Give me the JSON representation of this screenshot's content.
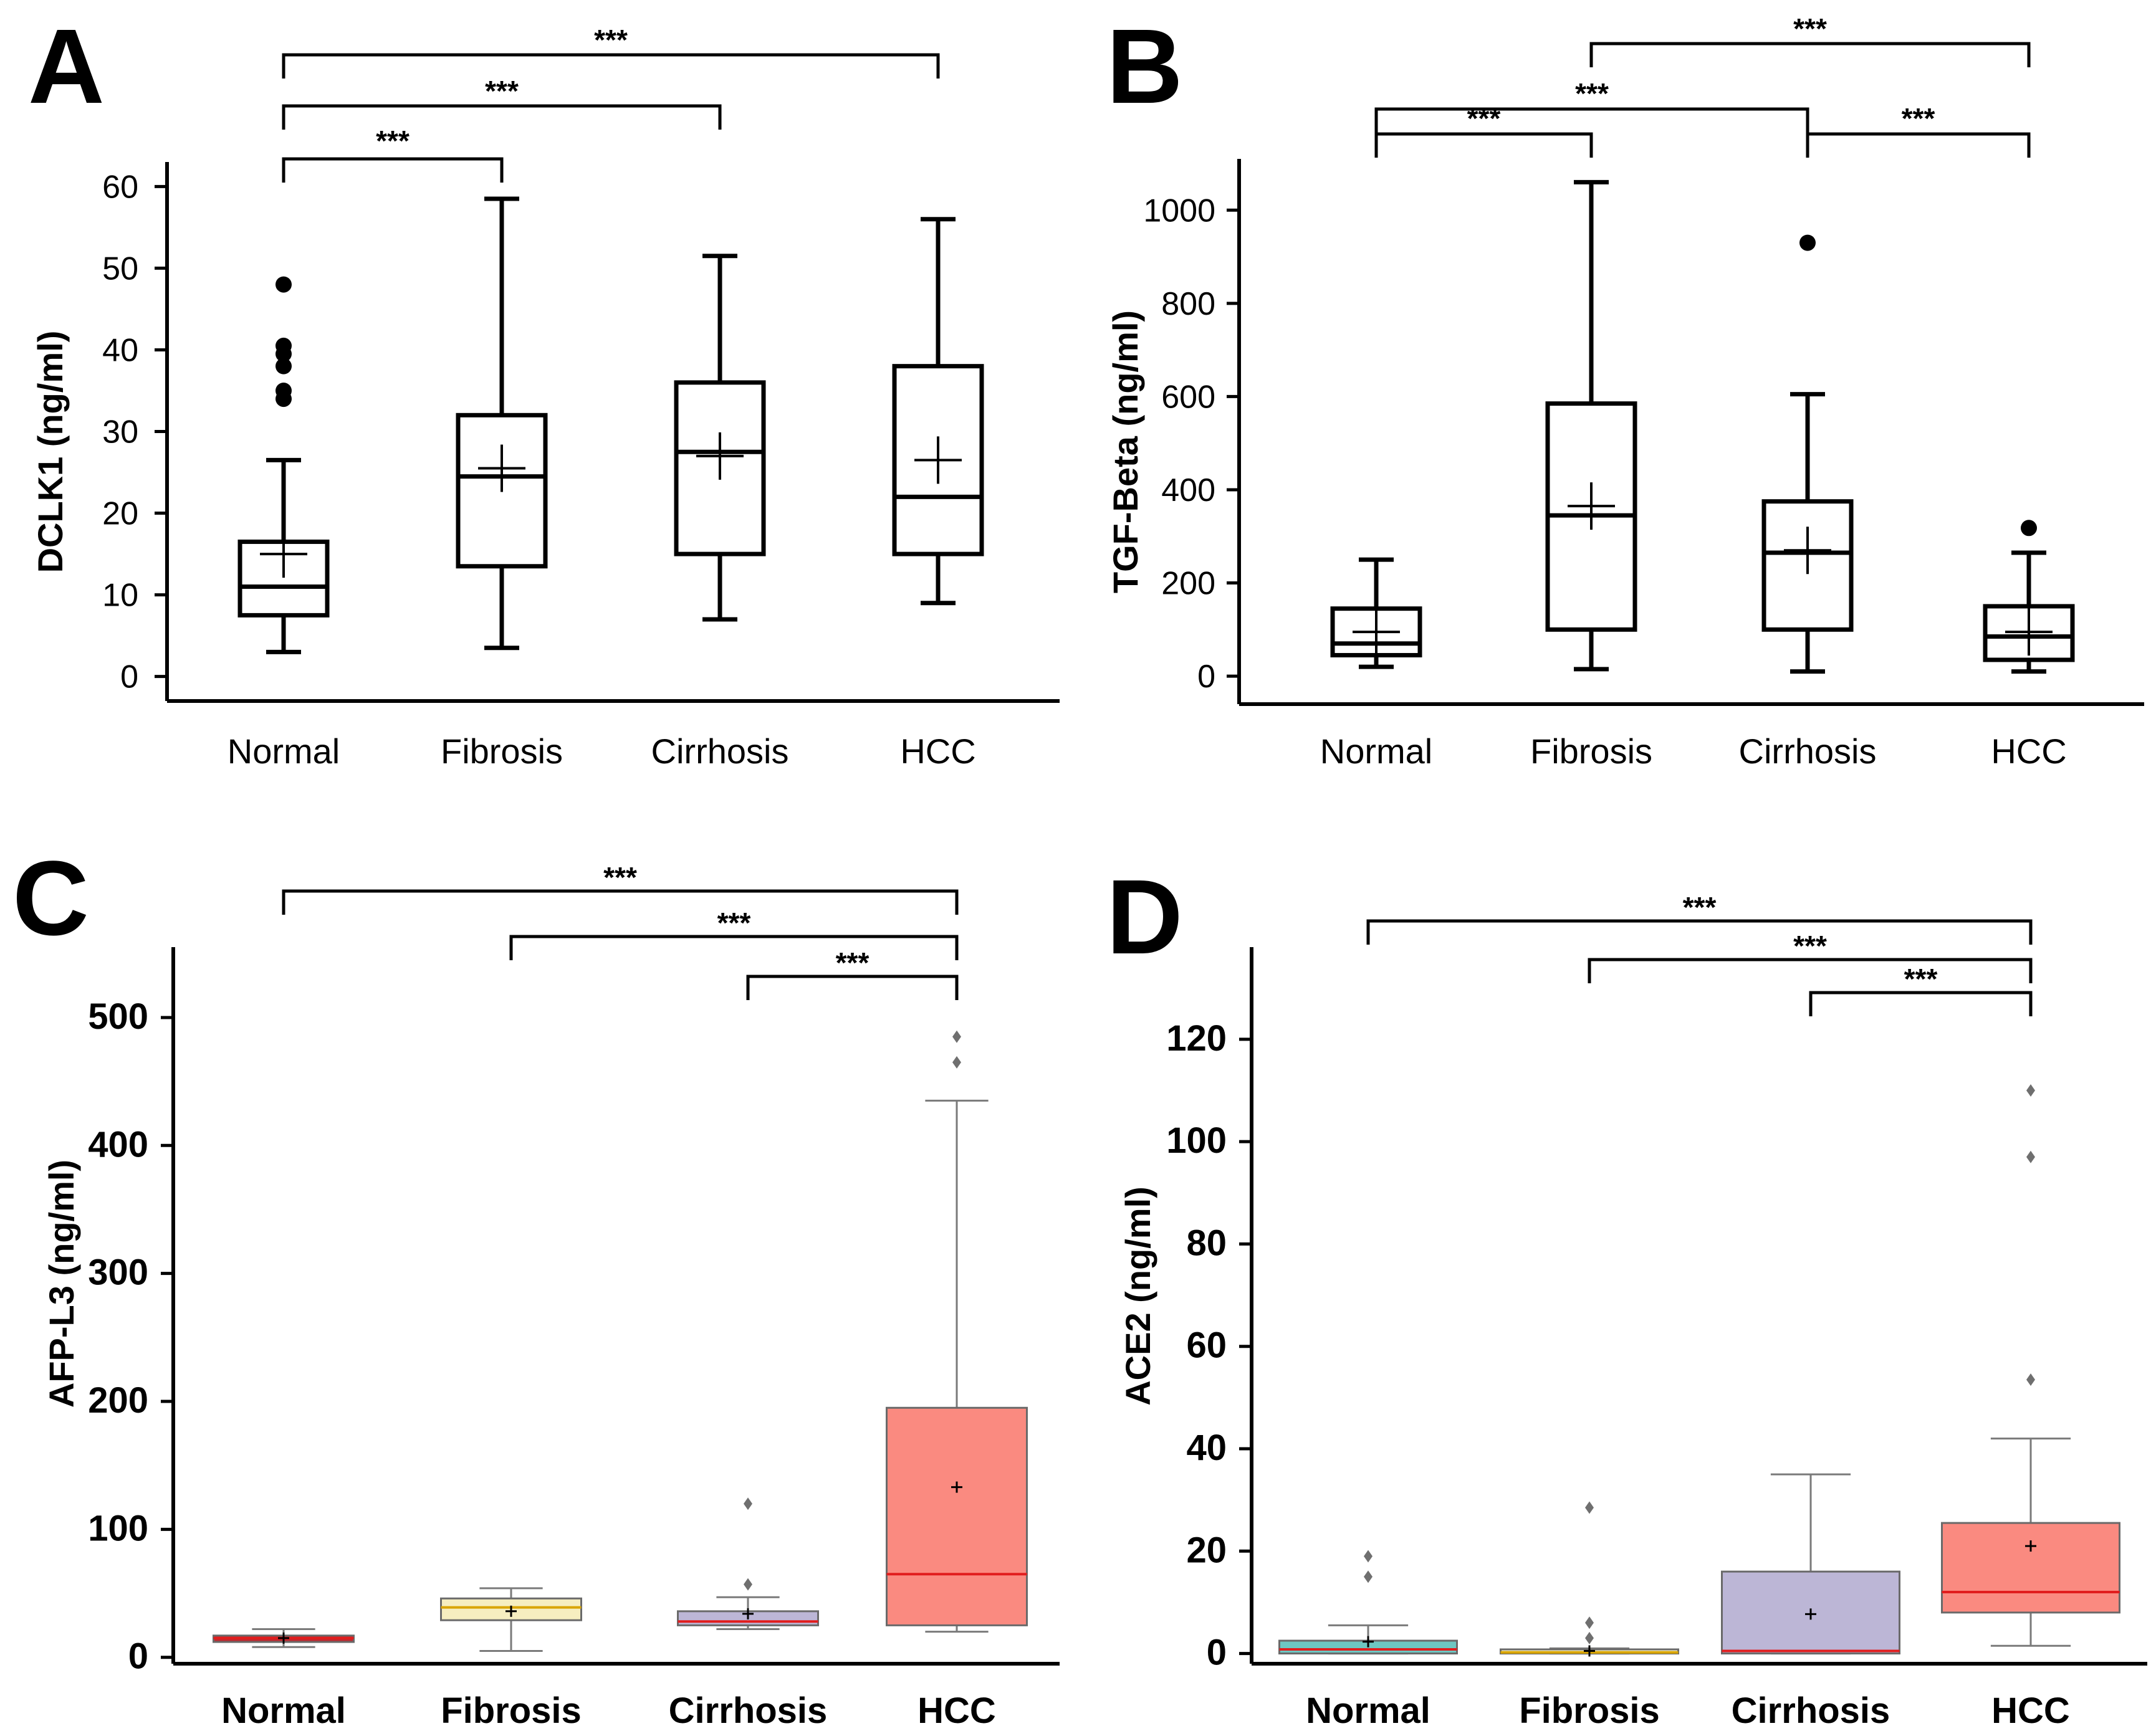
{
  "colors": {
    "normal_fill_C": "#c0282f",
    "normal_fill_D": "#6ec7c2",
    "fibrosis_fill": "#f6eec0",
    "cirrhosis_fill": "#bcb6d6",
    "hcc_fill": "#fa8a80",
    "median_red": "#e11d1d",
    "median_gold": "#d9a500",
    "whisker_grey": "#7a7a7a"
  },
  "chart_data": [
    {
      "panel": "A",
      "type": "box",
      "ylabel": "DCLK1 (ng/ml)",
      "ylim": [
        -3,
        63
      ],
      "yticks": [
        0,
        10,
        20,
        30,
        40,
        50,
        60
      ],
      "categories": [
        "Normal",
        "Fibrosis",
        "Cirrhosis",
        "HCC"
      ],
      "boxes": [
        {
          "min": 3,
          "q1": 7.5,
          "median": 11,
          "q3": 16.5,
          "max": 26.5,
          "mean": 15,
          "outliers": [
            34,
            35,
            38,
            39.5,
            40.5,
            48
          ]
        },
        {
          "min": 3.5,
          "q1": 13.5,
          "median": 24.5,
          "q3": 32,
          "max": 58.5,
          "mean": 25.5,
          "outliers": []
        },
        {
          "min": 7,
          "q1": 15,
          "median": 27.5,
          "q3": 36,
          "max": 51.5,
          "mean": 27,
          "outliers": []
        },
        {
          "min": 9,
          "q1": 15,
          "median": 22,
          "q3": 38,
          "max": 56,
          "mean": 26.5,
          "outliers": []
        }
      ],
      "comparisons": [
        {
          "from": 0,
          "to": 1,
          "label": "***"
        },
        {
          "from": 0,
          "to": 2,
          "label": "***"
        },
        {
          "from": 0,
          "to": 3,
          "label": "***"
        }
      ]
    },
    {
      "panel": "B",
      "type": "box",
      "ylabel": "TGF-Beta (ng/ml)",
      "ylim": [
        -60,
        1110
      ],
      "yticks": [
        0,
        200,
        400,
        600,
        800,
        1000
      ],
      "categories": [
        "Normal",
        "Fibrosis",
        "Cirrhosis",
        "HCC"
      ],
      "boxes": [
        {
          "min": 20,
          "q1": 45,
          "median": 70,
          "q3": 145,
          "max": 250,
          "mean": 95,
          "outliers": []
        },
        {
          "min": 15,
          "q1": 100,
          "median": 345,
          "q3": 585,
          "max": 1060,
          "mean": 365,
          "outliers": []
        },
        {
          "min": 10,
          "q1": 100,
          "median": 265,
          "q3": 375,
          "max": 605,
          "mean": 270,
          "outliers": [
            930
          ]
        },
        {
          "min": 10,
          "q1": 35,
          "median": 85,
          "q3": 150,
          "max": 265,
          "mean": 95,
          "outliers": [
            318
          ]
        }
      ],
      "comparisons": [
        {
          "from": 0,
          "to": 1,
          "label": "***"
        },
        {
          "from": 0,
          "to": 2,
          "label": "***"
        },
        {
          "from": 1,
          "to": 3,
          "label": "***"
        },
        {
          "from": 2,
          "to": 3,
          "label": "***"
        }
      ]
    },
    {
      "panel": "C",
      "type": "box",
      "ylabel": "AFP-L3  (ng/ml)",
      "ylim": [
        -5,
        555
      ],
      "yticks": [
        0,
        100,
        200,
        300,
        400,
        500
      ],
      "categories": [
        "Normal",
        "Fibrosis",
        "Cirrhosis",
        "HCC"
      ],
      "boxes": [
        {
          "min": 8,
          "q1": 12,
          "median": 15,
          "q3": 17,
          "max": 22,
          "mean": 15,
          "outliers": []
        },
        {
          "min": 5,
          "q1": 29,
          "median": 39,
          "q3": 46,
          "max": 54,
          "mean": 36,
          "outliers": []
        },
        {
          "min": 22,
          "q1": 25,
          "median": 28,
          "q3": 36,
          "max": 47,
          "mean": 34,
          "outliers": [
            120,
            57
          ]
        },
        {
          "min": 20,
          "q1": 25,
          "median": 65,
          "q3": 195,
          "max": 435,
          "mean": 133,
          "outliers": [
            465,
            485
          ]
        }
      ],
      "comparisons": [
        {
          "from": 0,
          "to": 3,
          "label": "***"
        },
        {
          "from": 1,
          "to": 3,
          "label": "***"
        },
        {
          "from": 2,
          "to": 3,
          "label": "***"
        }
      ]
    },
    {
      "panel": "D",
      "type": "box",
      "ylabel": "ACE2  (ng/ml)",
      "ylim": [
        -2,
        138
      ],
      "yticks": [
        0,
        20,
        40,
        60,
        80,
        100,
        120
      ],
      "categories": [
        "Normal",
        "Fibrosis",
        "Cirrhosis",
        "HCC"
      ],
      "boxes": [
        {
          "min": 0,
          "q1": 0,
          "median": 0.8,
          "q3": 2.5,
          "max": 5.5,
          "mean": 2.3,
          "outliers": [
            15,
            19
          ]
        },
        {
          "min": 0,
          "q1": 0,
          "median": 0.2,
          "q3": 0.8,
          "max": 1,
          "mean": 0.5,
          "outliers": [
            3,
            6,
            28.5
          ]
        },
        {
          "min": 0,
          "q1": 0,
          "median": 0.5,
          "q3": 16,
          "max": 35,
          "mean": 7.7,
          "outliers": []
        },
        {
          "min": 1.5,
          "q1": 8,
          "median": 12,
          "q3": 25.5,
          "max": 42,
          "mean": 21,
          "outliers": [
            53.5,
            97,
            110
          ]
        }
      ],
      "comparisons": [
        {
          "from": 0,
          "to": 3,
          "label": "***"
        },
        {
          "from": 1,
          "to": 3,
          "label": "***"
        },
        {
          "from": 2,
          "to": 3,
          "label": "***"
        }
      ]
    }
  ]
}
